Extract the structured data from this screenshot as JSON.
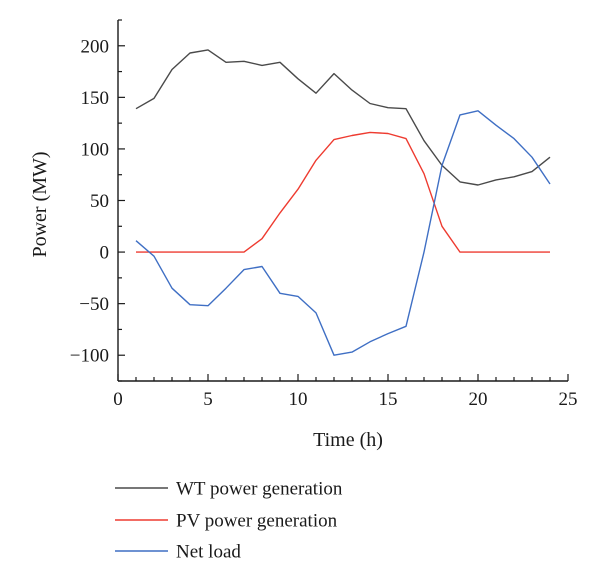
{
  "chart_data": {
    "type": "line",
    "title": "",
    "xlabel": "Time (h)",
    "ylabel": "Power (MW)",
    "xlim": [
      0,
      25
    ],
    "ylim": [
      -125,
      225
    ],
    "xticks": [
      0,
      5,
      10,
      15,
      20,
      25
    ],
    "yticks": [
      -100,
      -50,
      0,
      50,
      100,
      150,
      200
    ],
    "grid": false,
    "legend_position": "bottom",
    "x": [
      1,
      2,
      3,
      4,
      5,
      6,
      7,
      8,
      9,
      10,
      11,
      12,
      13,
      14,
      15,
      16,
      17,
      18,
      19,
      20,
      21,
      22,
      23,
      24
    ],
    "series": [
      {
        "name": "WT power generation",
        "color": "#4a4a4a",
        "values": [
          139,
          149,
          177,
          193,
          196,
          184,
          185,
          181,
          184,
          168,
          154,
          173,
          157,
          144,
          140,
          139,
          108,
          84,
          68,
          65,
          70,
          73,
          78,
          92
        ]
      },
      {
        "name": "PV power generation",
        "color": "#ee3b30",
        "values": [
          0,
          0,
          0,
          0,
          0,
          0,
          0,
          13,
          38,
          61,
          89,
          109,
          113,
          116,
          115,
          110,
          76,
          25,
          0,
          0,
          0,
          0,
          0,
          0
        ]
      },
      {
        "name": "Net load",
        "color": "#3f6fc4",
        "values": [
          11,
          -4,
          -35,
          -51,
          -52,
          -35,
          -17,
          -14,
          -40,
          -43,
          -59,
          -100,
          -97,
          -87,
          -79,
          -72,
          0,
          84,
          133,
          137,
          123,
          110,
          92,
          66
        ]
      }
    ]
  }
}
